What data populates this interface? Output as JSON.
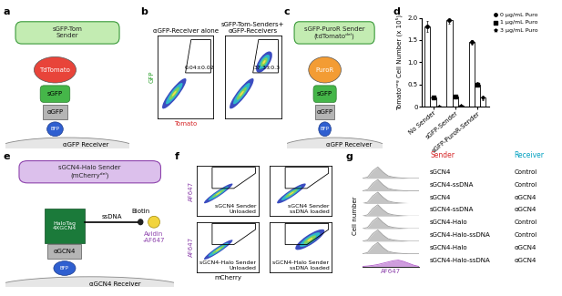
{
  "panel_labels": [
    "a",
    "b",
    "c",
    "d",
    "e",
    "f",
    "g"
  ],
  "diagrams": {
    "a": {
      "sender": "sGFP-Tom\nSender",
      "parts": [
        "TdTomato",
        "sGFP",
        "αGFP",
        "BFP"
      ],
      "receiver": "αGFP Receiver"
    },
    "c": {
      "sender": "sGFP-PuroR Sender\n(tdTomatoᵈᵉˡ)",
      "parts": [
        "PuroR",
        "sGFP",
        "αGFP",
        "BFP"
      ],
      "receiver": "αGFP Receiver"
    },
    "e": {
      "sender": "sGCN4-Halo Sender\n(mCherryᵈᵉˡ)",
      "parts": [
        "HaloTag\n4XGCN4",
        "αGCN4",
        "BFP"
      ],
      "linker": [
        "ssDNA",
        "Biotin",
        "Avidin\n-AF647"
      ],
      "receiver": "αGCN4 Receiver"
    }
  },
  "chart_data": [
    {
      "type": "scatter",
      "title": "αGFP-Receiver alone",
      "x_label": "Tomato",
      "y_label": "GFP",
      "xlim": [
        0,
        10
      ],
      "ylim": [
        0,
        10
      ],
      "tick_labels": false,
      "populations": [
        {
          "center": [
            3,
            3
          ],
          "width": 5.5,
          "height": 1.3,
          "tilt": 40
        }
      ],
      "gate": [
        [
          5,
          5.5
        ],
        [
          9.5,
          5.5
        ],
        [
          9.5,
          9.5
        ],
        [
          6,
          9.5
        ]
      ],
      "gate_label": "0.04±0.02"
    },
    {
      "type": "scatter",
      "title": "sGFP-Tom-Senders+\nαGFP-Receivers",
      "xlim": [
        0,
        10
      ],
      "ylim": [
        0,
        10
      ],
      "tick_labels": false,
      "populations": [
        {
          "center": [
            3,
            3
          ],
          "width": 5.5,
          "height": 1.3,
          "tilt": 40
        },
        {
          "center": [
            7,
            6.8
          ],
          "width": 3.5,
          "height": 1.6,
          "tilt": 40
        }
      ],
      "gate": [
        [
          5,
          5.5
        ],
        [
          9.5,
          5.5
        ],
        [
          9.5,
          9.5
        ],
        [
          6,
          9.5
        ]
      ],
      "gate_label": "37.3±0.3"
    },
    {
      "type": "bar",
      "categories": [
        "No Sender",
        "sGFP-Sender",
        "sGFP-PuroR-Sender"
      ],
      "y_label": "Tomatoⁿᵉᵍ Cell Number (x 10⁵)",
      "ylim": [
        0,
        2
      ],
      "yticks": [
        0,
        0.5,
        {
          "value": 1,
          "label": "1.0"
        },
        1.5,
        {
          "value": 2,
          "label": "2.0"
        }
      ],
      "legend": "upper left",
      "series": [
        {
          "name": "0 μg/mL Puro",
          "marker": "circle",
          "color": "#000000",
          "values": [
            1.8,
            1.95,
            1.45
          ],
          "errors": [
            0.12,
            0.08,
            0.05
          ]
        },
        {
          "name": "1 μg/mL Puro",
          "marker": "square",
          "color": "#000000",
          "values": [
            0.2,
            0.22,
            0.5
          ],
          "errors": [
            0.02,
            0.03,
            0.05
          ]
        },
        {
          "name": "3 μg/mL Puro",
          "marker": "star",
          "color": "#000000",
          "values": [
            0.01,
            0.02,
            0.2
          ],
          "errors": [
            0.005,
            0.01,
            0.05
          ]
        }
      ]
    },
    {
      "type": "scatter",
      "label": "sGCN4 Sender\nUnloaded",
      "y_label": "AF647",
      "xlim": [
        0,
        10
      ],
      "ylim": [
        0,
        10
      ],
      "tick_labels": false,
      "populations": [
        {
          "center": [
            3.5,
            4.5
          ],
          "width": 6,
          "height": 1,
          "tilt": 40
        }
      ],
      "gate": [
        [
          2.5,
          5.5
        ],
        [
          6,
          5.5
        ],
        [
          9.5,
          8.5
        ],
        [
          9.5,
          9.7
        ],
        [
          2.5,
          9.7
        ]
      ]
    },
    {
      "type": "scatter",
      "label": "sGCN4 Sender\nssDNA loaded",
      "xlim": [
        0,
        10
      ],
      "ylim": [
        0,
        10
      ],
      "tick_labels": false,
      "populations": [
        {
          "center": [
            3.5,
            4.5
          ],
          "width": 6,
          "height": 1.2,
          "tilt": 40
        }
      ],
      "gate": [
        [
          2.5,
          5.5
        ],
        [
          6,
          5.5
        ],
        [
          9.5,
          8.5
        ],
        [
          9.5,
          9.7
        ],
        [
          2.5,
          9.7
        ]
      ]
    },
    {
      "type": "scatter",
      "label": "sGCN4-Halo Sender\nUnloaded",
      "x_label": "mCherry",
      "y_label": "AF647",
      "xlim": [
        0,
        10
      ],
      "ylim": [
        0,
        10
      ],
      "tick_labels": false,
      "populations": [
        {
          "center": [
            3.5,
            4.5
          ],
          "width": 6,
          "height": 1,
          "tilt": 40
        }
      ],
      "gate": [
        [
          2.5,
          5.5
        ],
        [
          6,
          5.5
        ],
        [
          9.5,
          8.5
        ],
        [
          9.5,
          9.7
        ],
        [
          2.5,
          9.7
        ]
      ]
    },
    {
      "type": "scatter",
      "label": "sGCN4-Halo Sender\nssDNA loaded",
      "xlim": [
        0,
        10
      ],
      "ylim": [
        0,
        10
      ],
      "tick_labels": false,
      "populations": [
        {
          "center": [
            6.5,
            6.5
          ],
          "width": 6,
          "height": 1.8,
          "tilt": 40
        }
      ],
      "gate": [
        [
          2.5,
          5.5
        ],
        [
          6,
          5.5
        ],
        [
          9.5,
          8.5
        ],
        [
          9.5,
          9.7
        ],
        [
          2.5,
          9.7
        ]
      ]
    },
    {
      "type": "ridgeline",
      "x_label": "AF647",
      "y_label": "Cell number",
      "columns": [
        "Sender",
        "Receiver"
      ],
      "x": [
        0,
        1,
        2,
        3,
        4,
        5,
        6,
        7,
        8,
        9,
        10,
        11
      ],
      "xlim": [
        0,
        11
      ],
      "ylim": [
        0,
        10
      ],
      "tick_labels": false,
      "rows": [
        {
          "sender": "sGCN4",
          "receiver": "Control",
          "color": "#9e9e9e",
          "values": [
            0,
            1,
            6,
            9,
            5,
            2,
            1,
            0.5,
            0.2,
            0,
            0,
            0
          ]
        },
        {
          "sender": "sGCN4-ssDNA",
          "receiver": "Control",
          "color": "#9e9e9e",
          "values": [
            0,
            1,
            6,
            9,
            5,
            2,
            1,
            0.5,
            0.2,
            0,
            0,
            0
          ]
        },
        {
          "sender": "sGCN4",
          "receiver": "αGCN4",
          "color": "#9e9e9e",
          "values": [
            0,
            1,
            6,
            9,
            5,
            2,
            1,
            0.5,
            0.2,
            0,
            0,
            0
          ]
        },
        {
          "sender": "sGCN4-ssDNA",
          "receiver": "αGCN4",
          "color": "#9e9e9e",
          "values": [
            0,
            1,
            6,
            9,
            5,
            2,
            1,
            0.5,
            0.2,
            0,
            0,
            0
          ]
        },
        {
          "sender": "sGCN4-Halo",
          "receiver": "Control",
          "color": "#9e9e9e",
          "values": [
            0,
            1,
            6,
            9,
            5,
            2,
            1,
            0.5,
            0.2,
            0,
            0,
            0
          ]
        },
        {
          "sender": "sGCN4-Halo-ssDNA",
          "receiver": "Control",
          "color": "#9e9e9e",
          "values": [
            0,
            1,
            6,
            9,
            5,
            2,
            1,
            0.5,
            0.2,
            0,
            0,
            0
          ]
        },
        {
          "sender": "sGCN4-Halo",
          "receiver": "αGCN4",
          "color": "#9e9e9e",
          "values": [
            0,
            1,
            6,
            9,
            5,
            2,
            1,
            0.5,
            0.2,
            0,
            0,
            0
          ]
        },
        {
          "sender": "sGCN4-Halo-ssDNA",
          "receiver": "αGCN4",
          "color": "#b05cc9",
          "values": [
            0,
            0.3,
            0.8,
            1.5,
            2.5,
            3.5,
            4.5,
            5,
            4,
            2.5,
            1,
            0
          ]
        }
      ]
    }
  ]
}
